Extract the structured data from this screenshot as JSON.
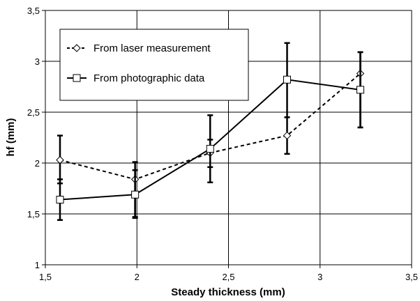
{
  "chart_data": {
    "type": "line",
    "xlabel": "Steady thickness (mm)",
    "ylabel": "hf (mm)",
    "xlim": [
      1.5,
      3.5
    ],
    "ylim": [
      1,
      3.5
    ],
    "x_ticks": [
      "1,5",
      "2",
      "2,5",
      "3",
      "3,5"
    ],
    "y_ticks": [
      "1",
      "1,5",
      "2",
      "2,5",
      "3",
      "3,5"
    ],
    "grid": true,
    "legend_position": "top-left",
    "series": [
      {
        "name": "From laser measurement",
        "marker": "diamond",
        "line_style": "dashed",
        "color": "#000000",
        "x": [
          1.58,
          1.99,
          2.4,
          2.82,
          3.22
        ],
        "y": [
          2.03,
          1.84,
          2.1,
          2.27,
          2.88
        ],
        "err_low": [
          1.8,
          1.46,
          1.96,
          2.09,
          2.35
        ],
        "err_high": [
          2.27,
          1.93,
          2.23,
          2.45,
          3.09
        ]
      },
      {
        "name": "From photographic data",
        "marker": "square",
        "line_style": "solid",
        "color": "#000000",
        "x": [
          1.58,
          1.99,
          2.4,
          2.82,
          3.22
        ],
        "y": [
          1.64,
          1.69,
          2.14,
          2.82,
          2.72
        ],
        "err_low": [
          1.44,
          1.47,
          1.81,
          2.45,
          2.35
        ],
        "err_high": [
          1.84,
          2.01,
          2.47,
          3.18,
          3.09
        ]
      }
    ]
  }
}
